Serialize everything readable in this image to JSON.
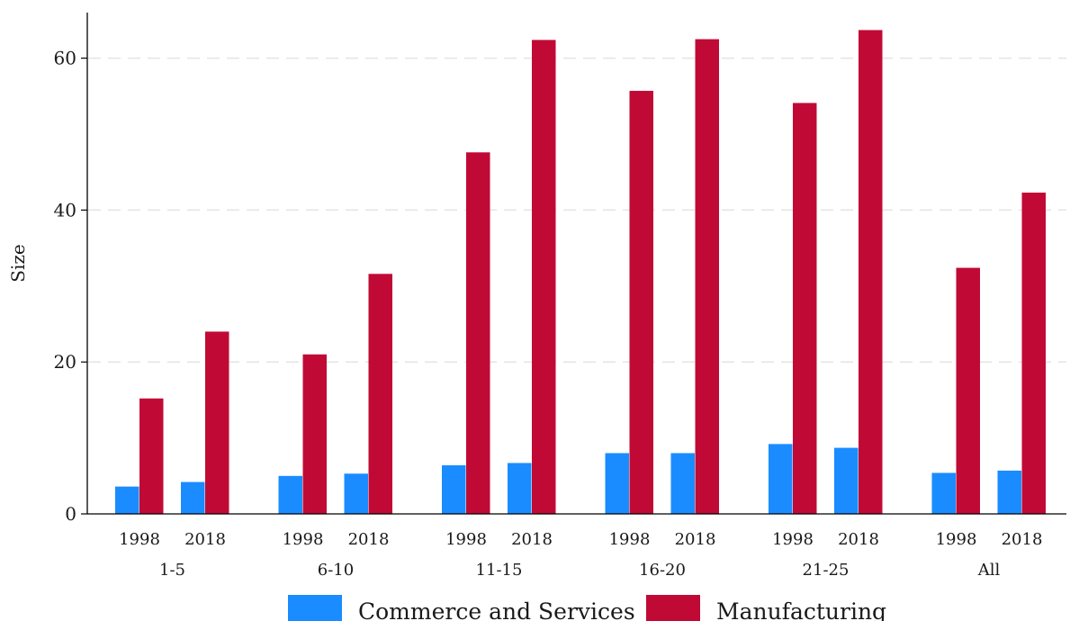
{
  "chart_data": {
    "type": "bar",
    "ylabel": "Size",
    "xlabel": "",
    "ylim": [
      0,
      66
    ],
    "yticks": [
      0,
      20,
      40,
      60
    ],
    "grid": "horizontal-dashed",
    "legend_placement": "bottom",
    "groups": [
      "1-5",
      "6-10",
      "11-15",
      "16-20",
      "21-25",
      "All"
    ],
    "years": [
      "1998",
      "2018"
    ],
    "series": [
      {
        "name": "Commerce and Services",
        "color": "#1a8cff",
        "values": [
          [
            3.6,
            4.2
          ],
          [
            5.0,
            5.3
          ],
          [
            6.4,
            6.7
          ],
          [
            8.0,
            8.0
          ],
          [
            9.2,
            8.7
          ],
          [
            5.4,
            5.7
          ]
        ]
      },
      {
        "name": "Manufacturing",
        "color": "#c00a35",
        "values": [
          [
            15.2,
            24.0
          ],
          [
            21.0,
            31.6
          ],
          [
            47.6,
            62.4
          ],
          [
            55.7,
            62.5
          ],
          [
            54.1,
            63.7
          ],
          [
            32.4,
            42.3
          ]
        ]
      }
    ]
  }
}
